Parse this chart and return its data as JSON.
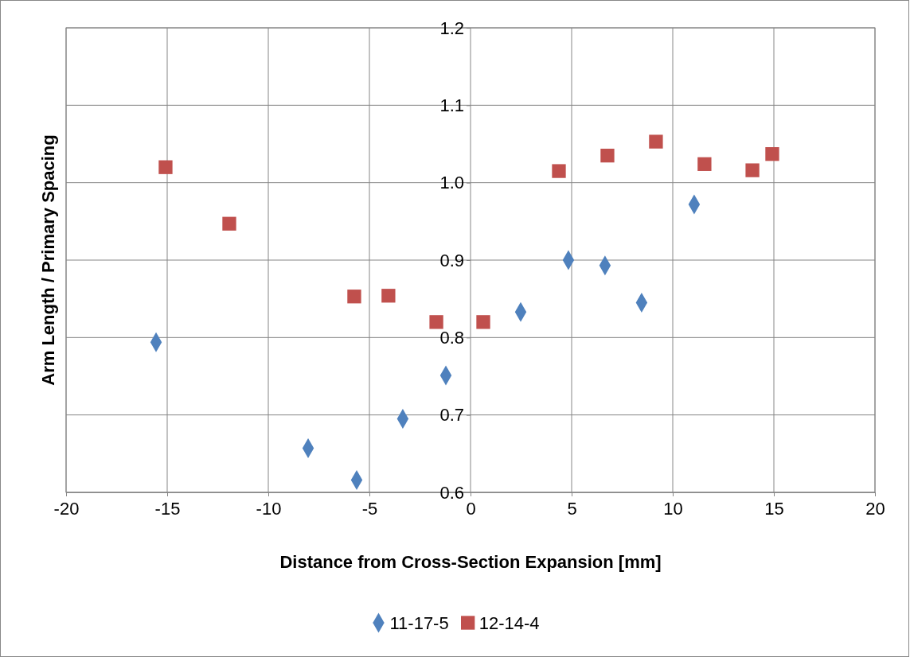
{
  "chart_data": {
    "type": "scatter",
    "xlabel": "Distance from Cross-Section Expansion [mm]",
    "ylabel": "Arm Length / Primary Spacing",
    "xlim": [
      -20,
      20
    ],
    "xticks": [
      -20,
      -15,
      -10,
      -5,
      0,
      5,
      10,
      15,
      20
    ],
    "ylim": [
      0.6,
      1.2
    ],
    "yticks": [
      0.6,
      0.7,
      0.8,
      0.9,
      {
        "value": 1,
        "label": "1.0"
      },
      1.1,
      1.2
    ],
    "grid": true,
    "legend": "bottom",
    "series": [
      {
        "name": "11-17-5",
        "color": "#4f81bd",
        "marker": "diamond",
        "x": [
          -15.55,
          -8.03,
          -5.63,
          -3.35,
          -1.22,
          2.48,
          4.84,
          6.65,
          8.46,
          11.06
        ],
        "values": [
          0.794,
          0.657,
          0.616,
          0.695,
          0.751,
          0.833,
          0.9,
          0.893,
          0.845,
          0.972
        ]
      },
      {
        "name": "12-14-4",
        "color": "#c0504d",
        "marker": "square",
        "x": [
          -15.08,
          -11.93,
          -5.75,
          -4.06,
          -1.69,
          0.63,
          4.37,
          6.77,
          9.17,
          11.57,
          13.94,
          14.92
        ],
        "values": [
          1.02,
          0.947,
          0.853,
          0.854,
          0.82,
          0.82,
          1.015,
          1.035,
          1.053,
          1.024,
          1.016,
          1.037
        ]
      }
    ]
  }
}
